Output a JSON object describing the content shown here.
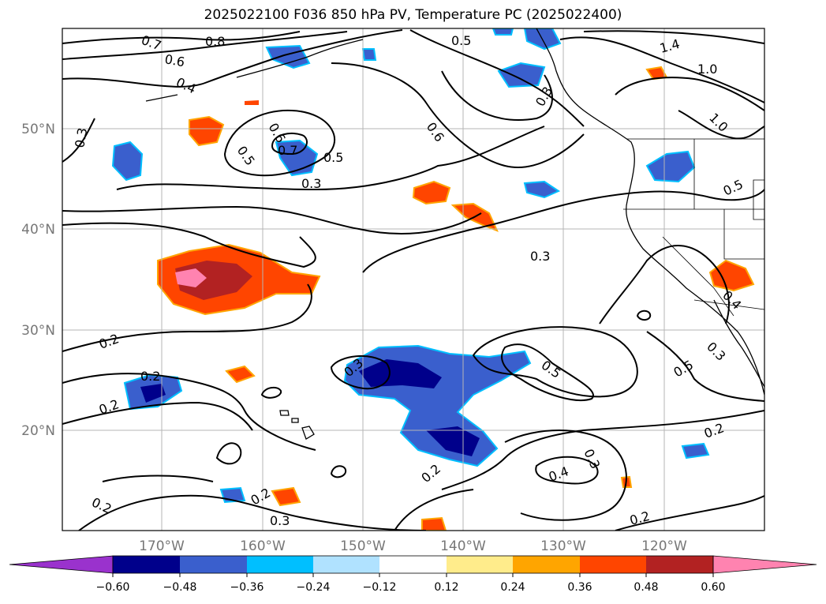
{
  "title": "2025022100 F036 850 hPa PV, Temperature PC (2025022400)",
  "map": {
    "lat_labels": [
      "50°N",
      "40°N",
      "30°N",
      "20°N"
    ],
    "lon_labels": [
      "170°W",
      "160°W",
      "150°W",
      "140°W",
      "130°W",
      "120°W"
    ],
    "contour_labels": [
      "0.7",
      "0.8",
      "0.6",
      "0.4",
      "0.3",
      "0.5",
      "0.6",
      "0.7",
      "0.5",
      "0.3",
      "0.6",
      "0.3",
      "0.5",
      "1.4",
      "1.0",
      "1.0",
      "0.5",
      "0.4",
      "0.3",
      "0.2",
      "0.2",
      "0.2",
      "0.3",
      "0.5",
      "0.3",
      "0.4",
      "0.2",
      "0.2",
      "0.2",
      "0.2",
      "0.3",
      "0.5",
      "0.2",
      "0.3"
    ]
  },
  "colorbar": {
    "tick_labels": [
      "−0.60",
      "−0.48",
      "−0.36",
      "−0.24",
      "−0.12",
      "0.12",
      "0.24",
      "0.36",
      "0.48",
      "0.60"
    ],
    "colors": [
      "#9a32cd",
      "#00008b",
      "#3a5fcd",
      "#00bfff",
      "#b0e2ff",
      "#ffffff",
      "#ffec8b",
      "#ffa500",
      "#ff4500",
      "#b22222",
      "#ff83b0"
    ]
  }
}
